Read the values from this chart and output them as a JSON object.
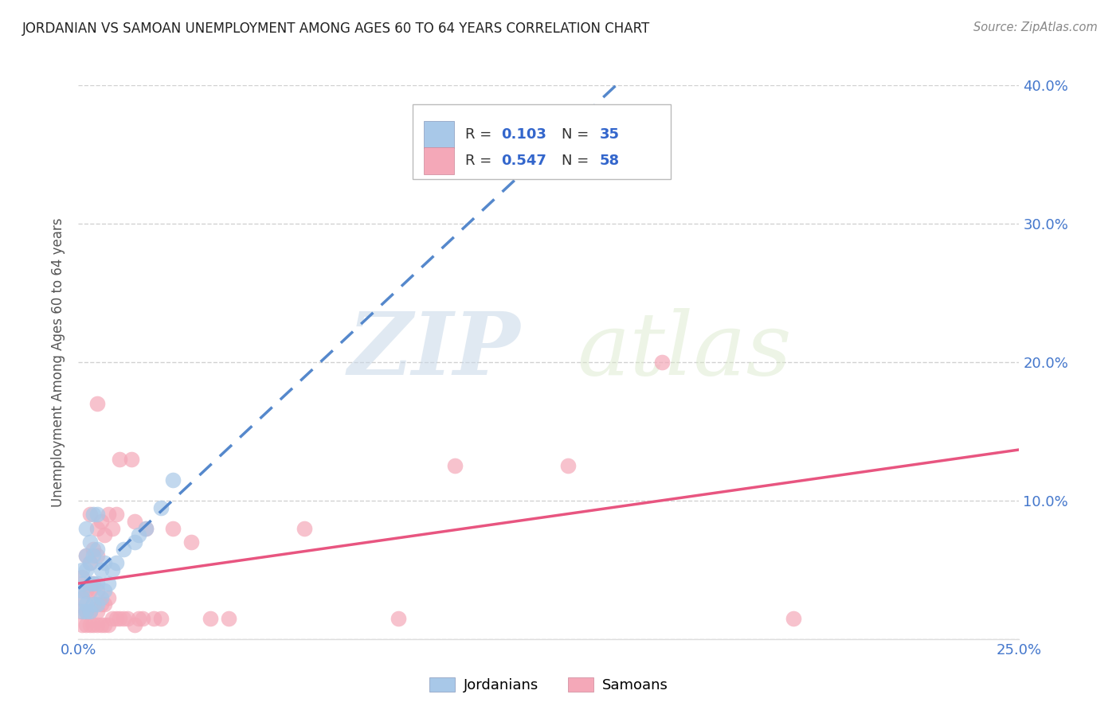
{
  "title": "JORDANIAN VS SAMOAN UNEMPLOYMENT AMONG AGES 60 TO 64 YEARS CORRELATION CHART",
  "source": "Source: ZipAtlas.com",
  "ylabel": "Unemployment Among Ages 60 to 64 years",
  "xlim": [
    0.0,
    0.25
  ],
  "ylim": [
    0.0,
    0.4
  ],
  "xticks": [
    0.0,
    0.05,
    0.1,
    0.15,
    0.2,
    0.25
  ],
  "yticks": [
    0.0,
    0.1,
    0.2,
    0.3,
    0.4
  ],
  "right_ytick_labels": [
    "",
    "10.0%",
    "20.0%",
    "30.0%",
    "40.0%"
  ],
  "xtick_labels": [
    "0.0%",
    "",
    "",
    "",
    "",
    "25.0%"
  ],
  "jordanian_color": "#a8c8e8",
  "samoan_color": "#f4a8b8",
  "jordanian_line_color": "#5588cc",
  "samoan_line_color": "#e85580",
  "R_jordanian": 0.103,
  "N_jordanian": 35,
  "R_samoan": 0.547,
  "N_samoan": 58,
  "background_color": "#ffffff",
  "grid_color": "#cccccc",
  "jordanian_x": [
    0.001,
    0.001,
    0.001,
    0.001,
    0.001,
    0.002,
    0.002,
    0.002,
    0.002,
    0.002,
    0.003,
    0.003,
    0.003,
    0.003,
    0.004,
    0.004,
    0.004,
    0.004,
    0.005,
    0.005,
    0.005,
    0.005,
    0.006,
    0.006,
    0.007,
    0.007,
    0.008,
    0.009,
    0.01,
    0.012,
    0.015,
    0.016,
    0.018,
    0.022,
    0.025
  ],
  "jordanian_y": [
    0.02,
    0.03,
    0.035,
    0.04,
    0.05,
    0.02,
    0.025,
    0.05,
    0.06,
    0.08,
    0.02,
    0.04,
    0.055,
    0.07,
    0.025,
    0.04,
    0.06,
    0.09,
    0.025,
    0.04,
    0.065,
    0.09,
    0.03,
    0.05,
    0.035,
    0.055,
    0.04,
    0.05,
    0.055,
    0.065,
    0.07,
    0.075,
    0.08,
    0.095,
    0.115
  ],
  "samoan_x": [
    0.0005,
    0.001,
    0.001,
    0.001,
    0.002,
    0.002,
    0.002,
    0.002,
    0.003,
    0.003,
    0.003,
    0.003,
    0.003,
    0.004,
    0.004,
    0.004,
    0.004,
    0.005,
    0.005,
    0.005,
    0.005,
    0.005,
    0.005,
    0.006,
    0.006,
    0.006,
    0.007,
    0.007,
    0.007,
    0.008,
    0.008,
    0.008,
    0.009,
    0.009,
    0.01,
    0.01,
    0.011,
    0.011,
    0.012,
    0.013,
    0.014,
    0.015,
    0.015,
    0.016,
    0.017,
    0.018,
    0.02,
    0.022,
    0.025,
    0.03,
    0.035,
    0.04,
    0.06,
    0.085,
    0.1,
    0.13,
    0.155,
    0.19
  ],
  "samoan_y": [
    0.02,
    0.01,
    0.03,
    0.045,
    0.01,
    0.02,
    0.035,
    0.06,
    0.01,
    0.02,
    0.035,
    0.055,
    0.09,
    0.01,
    0.025,
    0.04,
    0.065,
    0.01,
    0.02,
    0.035,
    0.06,
    0.08,
    0.17,
    0.01,
    0.025,
    0.085,
    0.01,
    0.025,
    0.075,
    0.01,
    0.03,
    0.09,
    0.015,
    0.08,
    0.015,
    0.09,
    0.015,
    0.13,
    0.015,
    0.015,
    0.13,
    0.01,
    0.085,
    0.015,
    0.015,
    0.08,
    0.015,
    0.015,
    0.08,
    0.07,
    0.015,
    0.015,
    0.08,
    0.015,
    0.125,
    0.125,
    0.2,
    0.015
  ]
}
